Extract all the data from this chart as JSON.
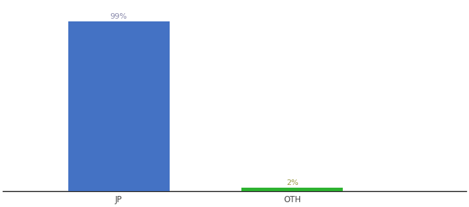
{
  "categories": [
    "JP",
    "OTH"
  ],
  "values": [
    99,
    2
  ],
  "bar_colors": [
    "#4472c4",
    "#2db330"
  ],
  "label_color_jp": "#8888aa",
  "label_color_oth": "#999944",
  "labels": [
    "99%",
    "2%"
  ],
  "background_color": "#ffffff",
  "bar_width": 0.35,
  "ylim": [
    0,
    110
  ],
  "xlim": [
    -0.1,
    1.5
  ],
  "x_positions": [
    0.3,
    0.9
  ],
  "label_fontsize": 8,
  "tick_fontsize": 8.5
}
